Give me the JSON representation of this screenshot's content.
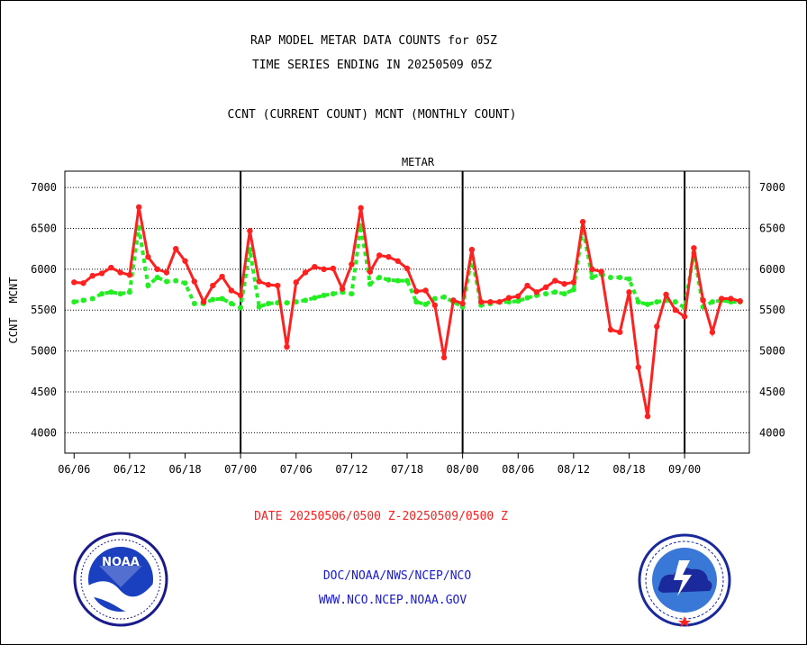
{
  "title_lines": [
    "RAP MODEL METAR DATA COUNTS for 05Z",
    "TIME SERIES ENDING IN 20250509 05Z"
  ],
  "subtitle": "CCNT (CURRENT COUNT) MCNT (MONTHLY COUNT)",
  "date_range": "DATE 20250506/0500 Z-20250509/0500 Z",
  "footer": {
    "line1": "DOC/NOAA/NWS/NCEP/NCO",
    "line2": "WWW.NCO.NCEP.NOAA.GOV"
  },
  "colors": {
    "ccnt": "#ff2020",
    "mcnt": "#22ee22",
    "panel_label": "#1a1acc",
    "footer": "#1a1acc",
    "date": "#ff2020"
  },
  "logos": {
    "left": "noaa-logo",
    "right": "national-weather-service-logo"
  },
  "chart_data": {
    "type": "line",
    "panel_label": "METAR",
    "ylabel_ccnt": "CCNT",
    "ylabel_mcnt": "MCNT",
    "ylim": [
      3750,
      7200
    ],
    "yticks": [
      4000,
      4500,
      5000,
      5500,
      6000,
      6500,
      7000
    ],
    "x_range": [
      -1,
      73
    ],
    "x_ticks": [
      {
        "x": 0,
        "label": "06/06"
      },
      {
        "x": 6,
        "label": "06/12"
      },
      {
        "x": 12,
        "label": "06/18"
      },
      {
        "x": 18,
        "label": "07/00"
      },
      {
        "x": 24,
        "label": "07/06"
      },
      {
        "x": 30,
        "label": "07/12"
      },
      {
        "x": 36,
        "label": "07/18"
      },
      {
        "x": 42,
        "label": "08/00"
      },
      {
        "x": 48,
        "label": "08/06"
      },
      {
        "x": 54,
        "label": "08/12"
      },
      {
        "x": 60,
        "label": "08/18"
      },
      {
        "x": 66,
        "label": "09/00"
      }
    ],
    "day_boundaries": [
      18,
      42,
      66
    ],
    "grid": true,
    "series": [
      {
        "name": "CCNT",
        "values": [
          5840,
          5830,
          5920,
          5950,
          6020,
          5960,
          5930,
          6760,
          6150,
          6000,
          5960,
          6250,
          6100,
          5850,
          5600,
          5800,
          5910,
          5740,
          5680,
          6470,
          5850,
          5810,
          5800,
          5050,
          5840,
          5960,
          6030,
          6000,
          6010,
          5760,
          6060,
          6750,
          5970,
          6170,
          6150,
          6100,
          6010,
          5730,
          5740,
          5560,
          4920,
          5620,
          5580,
          6240,
          5600,
          5600,
          5600,
          5650,
          5670,
          5800,
          5720,
          5780,
          5860,
          5820,
          5840,
          6580,
          6000,
          5970,
          5260,
          5230,
          5720,
          4800,
          4200,
          5300,
          5690,
          5500,
          5420,
          6260,
          5620,
          5230,
          5640,
          5640,
          5610
        ]
      },
      {
        "name": "MCNT",
        "values": [
          5600,
          5620,
          5640,
          5700,
          5720,
          5700,
          5720,
          6510,
          5800,
          5900,
          5850,
          5860,
          5830,
          5580,
          5580,
          5630,
          5640,
          5580,
          5530,
          6240,
          5540,
          5580,
          5590,
          5590,
          5600,
          5620,
          5650,
          5680,
          5700,
          5720,
          5700,
          6530,
          5820,
          5900,
          5870,
          5860,
          5860,
          5600,
          5570,
          5640,
          5660,
          5600,
          5540,
          6140,
          5560,
          5580,
          5600,
          5600,
          5610,
          5650,
          5680,
          5700,
          5720,
          5700,
          5750,
          6510,
          5900,
          5940,
          5900,
          5900,
          5880,
          5600,
          5570,
          5600,
          5620,
          5600,
          5530,
          6200,
          5540,
          5600,
          5620,
          5600,
          5600
        ]
      }
    ]
  }
}
